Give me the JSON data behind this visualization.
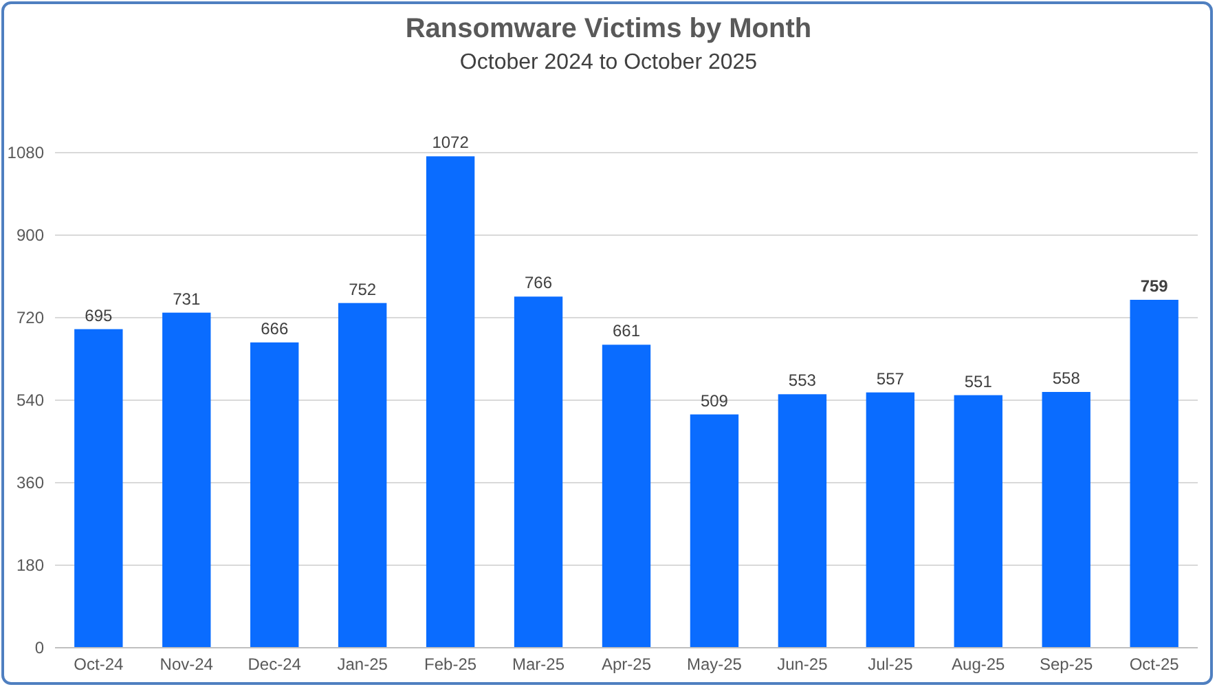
{
  "chart_data": {
    "type": "bar",
    "title": "Ransomware Victims by Month",
    "subtitle": "October 2024 to October 2025",
    "categories": [
      "Oct-24",
      "Nov-24",
      "Dec-24",
      "Jan-25",
      "Feb-25",
      "Mar-25",
      "Apr-25",
      "May-25",
      "Jun-25",
      "Jul-25",
      "Aug-25",
      "Sep-25",
      "Oct-25"
    ],
    "values": [
      695,
      731,
      666,
      752,
      1072,
      766,
      661,
      509,
      553,
      557,
      551,
      558,
      759
    ],
    "color": "#0a6cff",
    "ylim": [
      0,
      1080
    ],
    "yticks": [
      0,
      180,
      360,
      540,
      720,
      900,
      1080
    ],
    "grid": "y",
    "data_labels": true
  }
}
